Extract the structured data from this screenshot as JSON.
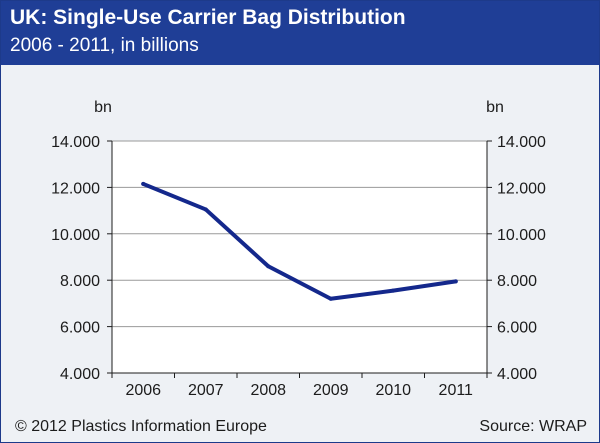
{
  "header": {
    "title": "UK: Single-Use Carrier Bag Distribution",
    "subtitle": "2006 - 2011, in billions"
  },
  "footer": {
    "copyright": "© 2012 Plastics Information Europe",
    "source": "Source: WRAP"
  },
  "colors": {
    "header_bg": "#1f3e96",
    "line": "#14288c",
    "plot_bg": "#ffffff",
    "page_bg": "#eef1f5",
    "grid": "#9a9a9a"
  },
  "chart_data": {
    "type": "line",
    "title": "UK: Single-Use Carrier Bag Distribution",
    "subtitle": "2006 - 2011, in billions",
    "unit_left": "bn",
    "unit_right": "bn",
    "categories": [
      "2006",
      "2007",
      "2008",
      "2009",
      "2010",
      "2011"
    ],
    "values": [
      12.15,
      11.05,
      8.6,
      7.2,
      7.55,
      7.95
    ],
    "ylim": [
      4.0,
      14.0
    ],
    "yticks": [
      4.0,
      6.0,
      8.0,
      10.0,
      12.0,
      14.0
    ],
    "ytick_labels": [
      "4.000",
      "6.000",
      "8.000",
      "10.000",
      "12.000",
      "14.000"
    ],
    "grid": "horizontal",
    "y_axis": "both sides"
  }
}
